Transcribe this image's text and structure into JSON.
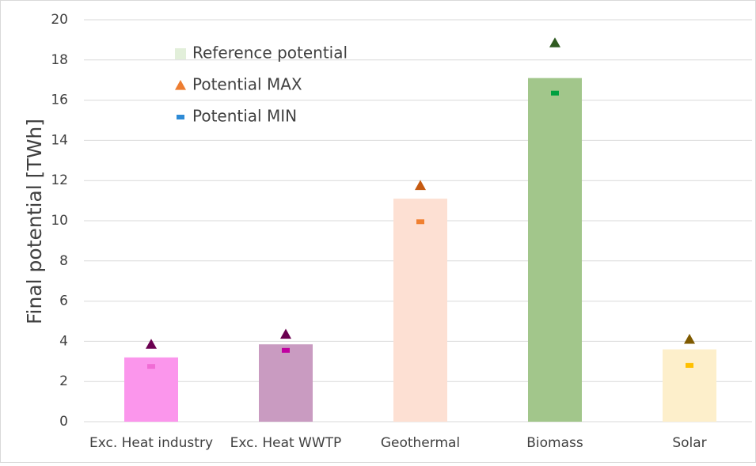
{
  "chart_data": {
    "type": "bar",
    "y_label": "Final potential [TWh]",
    "categories": [
      "Exc. Heat industry",
      "Exc. Heat WWTP",
      "Geothermal",
      "Biomass",
      "Solar"
    ],
    "series": [
      {
        "name": "Reference potential",
        "color": "#e2efda",
        "marker": "bar",
        "values": [
          3.2,
          3.85,
          11.1,
          17.1,
          3.6
        ],
        "point_colors": [
          "#fb96ec",
          "#c99bc1",
          "#fde0d3",
          "#a2c68b",
          "#fdefcb"
        ]
      },
      {
        "name": "Potential MAX",
        "color": "#ed7d31",
        "marker": "triangle",
        "values": [
          3.85,
          4.35,
          11.75,
          18.85,
          4.1
        ],
        "point_colors": [
          "#6b0050",
          "#6b0050",
          "#c55a11",
          "#2f5a20",
          "#7f5a00"
        ]
      },
      {
        "name": "Potential MIN",
        "color": "#2e8bd6",
        "marker": "dash",
        "values": [
          2.75,
          3.55,
          9.95,
          16.35,
          2.8
        ],
        "point_colors": [
          "#f06cd5",
          "#c000a0",
          "#f08030",
          "#00a040",
          "#ffc000"
        ]
      }
    ],
    "ylim": [
      0,
      20
    ],
    "yticks": [
      0,
      2,
      4,
      6,
      8,
      10,
      12,
      14,
      16,
      18,
      20
    ],
    "grid": true
  }
}
